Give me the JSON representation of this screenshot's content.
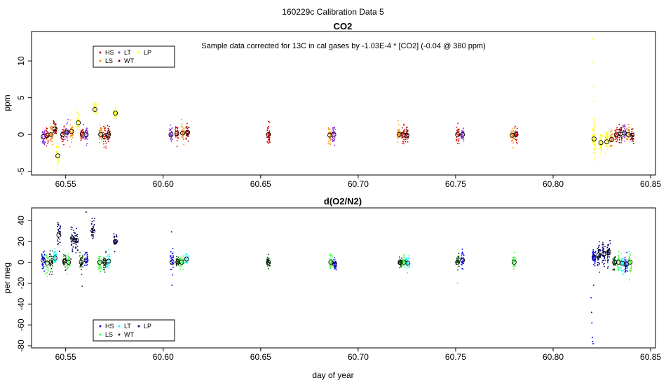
{
  "figure_title": "160229c   Calibration Data 5",
  "x_axis_label": "day of year",
  "chart_data": [
    {
      "type": "scatter",
      "title": "CO2",
      "ylabel": "ppm",
      "xlim": [
        60.5325,
        60.8525
      ],
      "ylim": [
        -5.5,
        14
      ],
      "x_ticks": [
        60.55,
        60.6,
        60.65,
        60.7,
        60.75,
        60.8,
        60.85
      ],
      "x_tick_labels": [
        "60.55",
        "60.60",
        "60.65",
        "60.70",
        "60.75",
        "60.80",
        "60.85"
      ],
      "y_ticks": [
        -5,
        0,
        5,
        10
      ],
      "y_tick_labels": [
        "-5",
        "0",
        "5",
        "10"
      ],
      "annotation": "Sample data corrected for 13C in cal gases by -1.03E-4 * [CO2] (-0.04 @ 380 ppm)",
      "legend": {
        "placement": "top-left",
        "entries": [
          {
            "label": "HS",
            "color": "#dd0000"
          },
          {
            "label": "LS",
            "color": "#ff8c00"
          },
          {
            "label": "LT",
            "color": "#8a2be2"
          },
          {
            "label": "WT",
            "color": "#8b0000"
          },
          {
            "label": "LP",
            "color": "#ffff00"
          }
        ]
      },
      "clusters": [
        {
          "x": 60.5385,
          "mean": -0.3,
          "sd": 0.6,
          "color": "#8a2be2",
          "n": 30
        },
        {
          "x": 60.5405,
          "mean": -0.1,
          "sd": 0.6,
          "color": "#dd0000",
          "n": 30
        },
        {
          "x": 60.5425,
          "mean": 0.0,
          "sd": 0.6,
          "color": "#ff8c00",
          "n": 30
        },
        {
          "x": 60.5445,
          "mean": 0.8,
          "sd": 0.5,
          "color": "#8b0000",
          "n": 30
        },
        {
          "x": 60.546,
          "mean": -2.9,
          "sd": 0.8,
          "color": "#ffff00",
          "n": 30
        },
        {
          "x": 60.5485,
          "mean": 0.0,
          "sd": 0.6,
          "color": "#dd0000",
          "n": 30
        },
        {
          "x": 60.5505,
          "mean": 0.3,
          "sd": 0.6,
          "color": "#8a2be2",
          "n": 30
        },
        {
          "x": 60.553,
          "mean": 0.4,
          "sd": 0.6,
          "color": "#ff8c00",
          "n": 30
        },
        {
          "x": 60.5565,
          "mean": 1.6,
          "sd": 0.6,
          "color": "#ffff00",
          "n": 30
        },
        {
          "x": 60.5585,
          "mean": 0.0,
          "sd": 0.5,
          "color": "#dd0000",
          "n": 30
        },
        {
          "x": 60.5605,
          "mean": 0.0,
          "sd": 0.5,
          "color": "#8a2be2",
          "n": 30
        },
        {
          "x": 60.565,
          "mean": 3.4,
          "sd": 0.5,
          "color": "#ffff00",
          "n": 30
        },
        {
          "x": 60.568,
          "mean": 0.0,
          "sd": 0.6,
          "color": "#ff8c00",
          "n": 30
        },
        {
          "x": 60.57,
          "mean": -0.3,
          "sd": 0.6,
          "color": "#dd0000",
          "n": 30
        },
        {
          "x": 60.572,
          "mean": 0.0,
          "sd": 0.5,
          "color": "#8b0000",
          "n": 30
        },
        {
          "x": 60.5755,
          "mean": 2.9,
          "sd": 0.5,
          "color": "#ffff00",
          "n": 30
        },
        {
          "x": 60.604,
          "mean": 0.0,
          "sd": 0.6,
          "color": "#8a2be2",
          "n": 30
        },
        {
          "x": 60.607,
          "mean": 0.1,
          "sd": 0.6,
          "color": "#dd0000",
          "n": 30
        },
        {
          "x": 60.61,
          "mean": 0.2,
          "sd": 0.6,
          "color": "#ff8c00",
          "n": 30
        },
        {
          "x": 60.6125,
          "mean": 0.3,
          "sd": 0.5,
          "color": "#8b0000",
          "n": 30
        },
        {
          "x": 60.654,
          "mean": 0.0,
          "sd": 0.7,
          "color": "#dd0000",
          "n": 40
        },
        {
          "x": 60.6855,
          "mean": -0.1,
          "sd": 0.6,
          "color": "#ff8c00",
          "n": 30
        },
        {
          "x": 60.6875,
          "mean": 0.0,
          "sd": 0.6,
          "color": "#8a2be2",
          "n": 30
        },
        {
          "x": 60.721,
          "mean": 0.0,
          "sd": 0.6,
          "color": "#ff8c00",
          "n": 30
        },
        {
          "x": 60.723,
          "mean": 0.0,
          "sd": 0.6,
          "color": "#dd0000",
          "n": 30
        },
        {
          "x": 60.725,
          "mean": -0.1,
          "sd": 0.5,
          "color": "#8b0000",
          "n": 30
        },
        {
          "x": 60.751,
          "mean": 0.0,
          "sd": 0.6,
          "color": "#dd0000",
          "n": 30
        },
        {
          "x": 60.7535,
          "mean": 0.0,
          "sd": 0.5,
          "color": "#8a2be2",
          "n": 30
        },
        {
          "x": 60.779,
          "mean": -0.1,
          "sd": 0.6,
          "color": "#ff8c00",
          "n": 30
        },
        {
          "x": 60.781,
          "mean": 0.0,
          "sd": 0.6,
          "color": "#dd0000",
          "n": 30
        },
        {
          "x": 60.821,
          "mean": -0.6,
          "sd": 1.2,
          "color": "#ffff00",
          "n": 60
        },
        {
          "x": 60.8245,
          "mean": -1.1,
          "sd": 0.8,
          "color": "#ffff00",
          "n": 40
        },
        {
          "x": 60.8275,
          "mean": -1.0,
          "sd": 0.8,
          "color": "#ffff00",
          "n": 40
        },
        {
          "x": 60.83,
          "mean": -0.7,
          "sd": 0.6,
          "color": "#ff8c00",
          "n": 30
        },
        {
          "x": 60.8325,
          "mean": 0.0,
          "sd": 0.6,
          "color": "#dd0000",
          "n": 30
        },
        {
          "x": 60.8345,
          "mean": 0.1,
          "sd": 0.6,
          "color": "#8b0000",
          "n": 30
        },
        {
          "x": 60.8365,
          "mean": 0.2,
          "sd": 0.6,
          "color": "#8a2be2",
          "n": 30
        },
        {
          "x": 60.8385,
          "mean": 0.0,
          "sd": 0.6,
          "color": "#ff8c00",
          "n": 30
        },
        {
          "x": 60.8405,
          "mean": -0.1,
          "sd": 0.5,
          "color": "#8b0000",
          "n": 30
        }
      ],
      "outliers": [
        {
          "x": 60.8203,
          "y": 13.0,
          "color": "#ffff00"
        },
        {
          "x": 60.8205,
          "y": 9.8,
          "color": "#ffff00"
        },
        {
          "x": 60.8207,
          "y": 6.5,
          "color": "#ffff00"
        },
        {
          "x": 60.8209,
          "y": 4.5,
          "color": "#ffff00"
        },
        {
          "x": 60.5458,
          "y": -4.9,
          "color": "#ffff00"
        }
      ]
    },
    {
      "type": "scatter",
      "title": "d(O2/N2)",
      "ylabel": "per meg",
      "xlim": [
        60.5325,
        60.8525
      ],
      "ylim": [
        -82,
        52
      ],
      "x_ticks": [
        60.55,
        60.6,
        60.65,
        60.7,
        60.75,
        60.8,
        60.85
      ],
      "x_tick_labels": [
        "60.55",
        "60.60",
        "60.65",
        "60.70",
        "60.75",
        "60.80",
        "60.85"
      ],
      "y_ticks": [
        -80,
        -60,
        -40,
        -20,
        0,
        20,
        40
      ],
      "y_tick_labels": [
        "-80",
        "-60",
        "-40",
        "-20",
        "0",
        "20",
        "40"
      ],
      "legend": {
        "placement": "bottom-left",
        "entries": [
          {
            "label": "HS",
            "color": "#0000ff"
          },
          {
            "label": "LS",
            "color": "#33ff33"
          },
          {
            "label": "LT",
            "color": "#00ffff"
          },
          {
            "label": "WT",
            "color": "#004400"
          },
          {
            "label": "LP",
            "color": "#000066"
          }
        ]
      },
      "clusters": [
        {
          "x": 60.5385,
          "mean": 2,
          "sd": 4,
          "color": "#0000ff",
          "n": 30
        },
        {
          "x": 60.5405,
          "mean": -1,
          "sd": 6,
          "color": "#33ff33",
          "n": 30
        },
        {
          "x": 60.5425,
          "mean": 0,
          "sd": 5,
          "color": "#004400",
          "n": 30
        },
        {
          "x": 60.5445,
          "mean": 4,
          "sd": 4,
          "color": "#00ffff",
          "n": 30
        },
        {
          "x": 60.5465,
          "mean": 26,
          "sd": 6,
          "color": "#000066",
          "n": 30
        },
        {
          "x": 60.5495,
          "mean": 1,
          "sd": 4,
          "color": "#004400",
          "n": 30
        },
        {
          "x": 60.5515,
          "mean": 0,
          "sd": 4,
          "color": "#33ff33",
          "n": 30
        },
        {
          "x": 60.5535,
          "mean": 23,
          "sd": 6,
          "color": "#000066",
          "n": 30
        },
        {
          "x": 60.5555,
          "mean": 21,
          "sd": 6,
          "color": "#000066",
          "n": 30
        },
        {
          "x": 60.558,
          "mean": 0,
          "sd": 4,
          "color": "#004400",
          "n": 30
        },
        {
          "x": 60.5605,
          "mean": 2,
          "sd": 4,
          "color": "#0000ff",
          "n": 30
        },
        {
          "x": 60.564,
          "mean": 30,
          "sd": 6,
          "color": "#000066",
          "n": 30
        },
        {
          "x": 60.5675,
          "mean": 0,
          "sd": 4,
          "color": "#33ff33",
          "n": 30
        },
        {
          "x": 60.57,
          "mean": 0,
          "sd": 4,
          "color": "#004400",
          "n": 30
        },
        {
          "x": 60.572,
          "mean": 1,
          "sd": 4,
          "color": "#00ffff",
          "n": 30
        },
        {
          "x": 60.5755,
          "mean": 20,
          "sd": 4,
          "color": "#000066",
          "n": 30
        },
        {
          "x": 60.6045,
          "mean": 0,
          "sd": 6,
          "color": "#0000ff",
          "n": 30
        },
        {
          "x": 60.6075,
          "mean": 0,
          "sd": 3,
          "color": "#004400",
          "n": 30
        },
        {
          "x": 60.6095,
          "mean": 0,
          "sd": 3,
          "color": "#33ff33",
          "n": 30
        },
        {
          "x": 60.612,
          "mean": 3,
          "sd": 3,
          "color": "#00ffff",
          "n": 30
        },
        {
          "x": 60.654,
          "mean": 0,
          "sd": 3,
          "color": "#004400",
          "n": 40
        },
        {
          "x": 60.686,
          "mean": 0,
          "sd": 4,
          "color": "#33ff33",
          "n": 30
        },
        {
          "x": 60.688,
          "mean": -2,
          "sd": 3,
          "color": "#0000ff",
          "n": 30
        },
        {
          "x": 60.7215,
          "mean": 0,
          "sd": 3,
          "color": "#004400",
          "n": 30
        },
        {
          "x": 60.7235,
          "mean": 0,
          "sd": 3,
          "color": "#33ff33",
          "n": 30
        },
        {
          "x": 60.7255,
          "mean": -1,
          "sd": 3,
          "color": "#00ffff",
          "n": 30
        },
        {
          "x": 60.751,
          "mean": 0,
          "sd": 4,
          "color": "#004400",
          "n": 30
        },
        {
          "x": 60.7535,
          "mean": 2,
          "sd": 4,
          "color": "#0000ff",
          "n": 30
        },
        {
          "x": 60.78,
          "mean": 0,
          "sd": 3,
          "color": "#33ff33",
          "n": 30
        },
        {
          "x": 60.821,
          "mean": 5,
          "sd": 5,
          "color": "#0000ff",
          "n": 45
        },
        {
          "x": 60.8235,
          "mean": 7,
          "sd": 5,
          "color": "#000066",
          "n": 40
        },
        {
          "x": 60.826,
          "mean": 8,
          "sd": 5,
          "color": "#000066",
          "n": 40
        },
        {
          "x": 60.8285,
          "mean": 10,
          "sd": 6,
          "color": "#000066",
          "n": 40
        },
        {
          "x": 60.8315,
          "mean": 0,
          "sd": 4,
          "color": "#004400",
          "n": 30
        },
        {
          "x": 60.8335,
          "mean": 0,
          "sd": 4,
          "color": "#33ff33",
          "n": 30
        },
        {
          "x": 60.8355,
          "mean": -1,
          "sd": 4,
          "color": "#00ffff",
          "n": 30
        },
        {
          "x": 60.8375,
          "mean": -2,
          "sd": 4,
          "color": "#0000ff",
          "n": 30
        },
        {
          "x": 60.8395,
          "mean": 0,
          "sd": 5,
          "color": "#33ff33",
          "n": 30
        }
      ],
      "outliers": [
        {
          "x": 60.8195,
          "y": -34,
          "color": "#0000ff"
        },
        {
          "x": 60.8197,
          "y": -48,
          "color": "#0000ff"
        },
        {
          "x": 60.8199,
          "y": -58,
          "color": "#0000ff"
        },
        {
          "x": 60.8201,
          "y": -72,
          "color": "#0000ff"
        },
        {
          "x": 60.8203,
          "y": -76,
          "color": "#0000ff"
        },
        {
          "x": 60.8205,
          "y": -78,
          "color": "#0000ff"
        },
        {
          "x": 60.8208,
          "y": -22,
          "color": "#0000ff"
        },
        {
          "x": 60.6045,
          "y": -22,
          "color": "#0000ff"
        },
        {
          "x": 60.6043,
          "y": 29,
          "color": "#0000ff"
        },
        {
          "x": 60.5605,
          "y": 48,
          "color": "#000066"
        },
        {
          "x": 60.5585,
          "y": -23,
          "color": "#004400"
        },
        {
          "x": 60.751,
          "y": -20,
          "color": "#33ff33"
        }
      ]
    }
  ]
}
